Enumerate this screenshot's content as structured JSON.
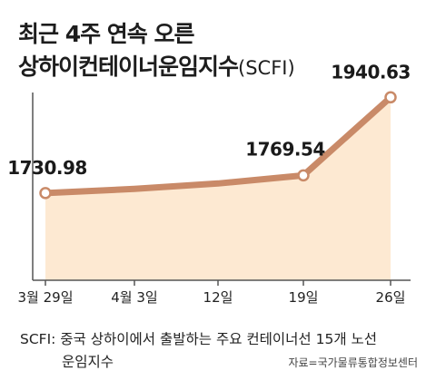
{
  "title": {
    "line1": "최근 4주 연속 오른",
    "line2": "상하이컨테이너운임지수",
    "suffix": "(SCFI)"
  },
  "chart_data": {
    "type": "area",
    "categories": [
      "3월 29일",
      "4월 3일",
      "12일",
      "19일",
      "26일"
    ],
    "series": [
      {
        "values": [
          1730.98,
          1740.0,
          1752.0,
          1769.54,
          1940.63
        ]
      }
    ],
    "data_labels": [
      "1730.98",
      "",
      "",
      "1769.54",
      "1940.63"
    ],
    "title": "",
    "xlabel": "",
    "ylabel": "",
    "ylim": [
      1540,
      1975
    ],
    "grid": false,
    "legend": "none",
    "colors": {
      "line": "#c98a68",
      "fill": "#fde9d2",
      "marker_fill": "#ffffff",
      "axis": "#555555"
    }
  },
  "footnote": {
    "line1": "SCFI: 중국 상하이에서 출발하는 주요 컨테이너선 15개 노선",
    "line2": "운임지수"
  },
  "source": "자료=국가물류통합정보센터"
}
